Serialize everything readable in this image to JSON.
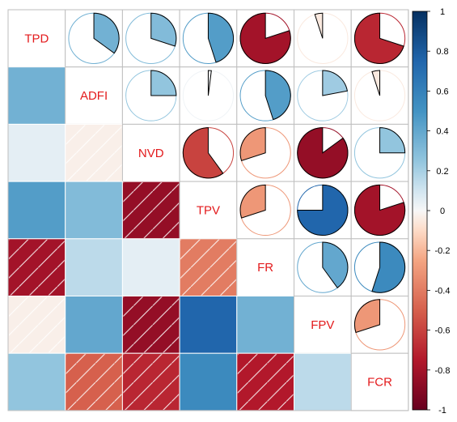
{
  "chart_data": {
    "type": "heatmap",
    "variables": [
      "TPD",
      "ADFI",
      "NVD",
      "TPV",
      "FR",
      "FPV",
      "FCR"
    ],
    "matrix": [
      [
        1.0,
        0.35,
        0.3,
        0.45,
        -0.8,
        -0.05,
        -0.7
      ],
      [
        0.35,
        1.0,
        0.25,
        0.02,
        0.45,
        0.22,
        -0.05
      ],
      [
        0.05,
        -0.03,
        1.0,
        -0.6,
        -0.3,
        -0.85,
        0.25
      ],
      [
        0.45,
        0.3,
        -0.85,
        1.0,
        -0.3,
        0.75,
        -0.8
      ],
      [
        -0.8,
        0.15,
        0.05,
        -0.4,
        1.0,
        0.4,
        0.55
      ],
      [
        -0.03,
        0.4,
        -0.85,
        0.75,
        0.35,
        1.0,
        -0.3
      ],
      [
        0.25,
        -0.5,
        -0.7,
        0.55,
        -0.75,
        0.15,
        1.0
      ]
    ],
    "upper_method": "pie",
    "lower_method": "shade",
    "colorbar_ticks": [
      "1",
      "0.8",
      "0.6",
      "0.4",
      "0.2",
      "0",
      "-0.2",
      "-0.4",
      "-0.6",
      "-0.8",
      "-1"
    ],
    "colorbar_range": [
      -1,
      1
    ],
    "colors": {
      "negative_end": "#67001f",
      "neutral": "#f7f7f7",
      "positive_end": "#053061",
      "label": "#e31a1c"
    }
  }
}
